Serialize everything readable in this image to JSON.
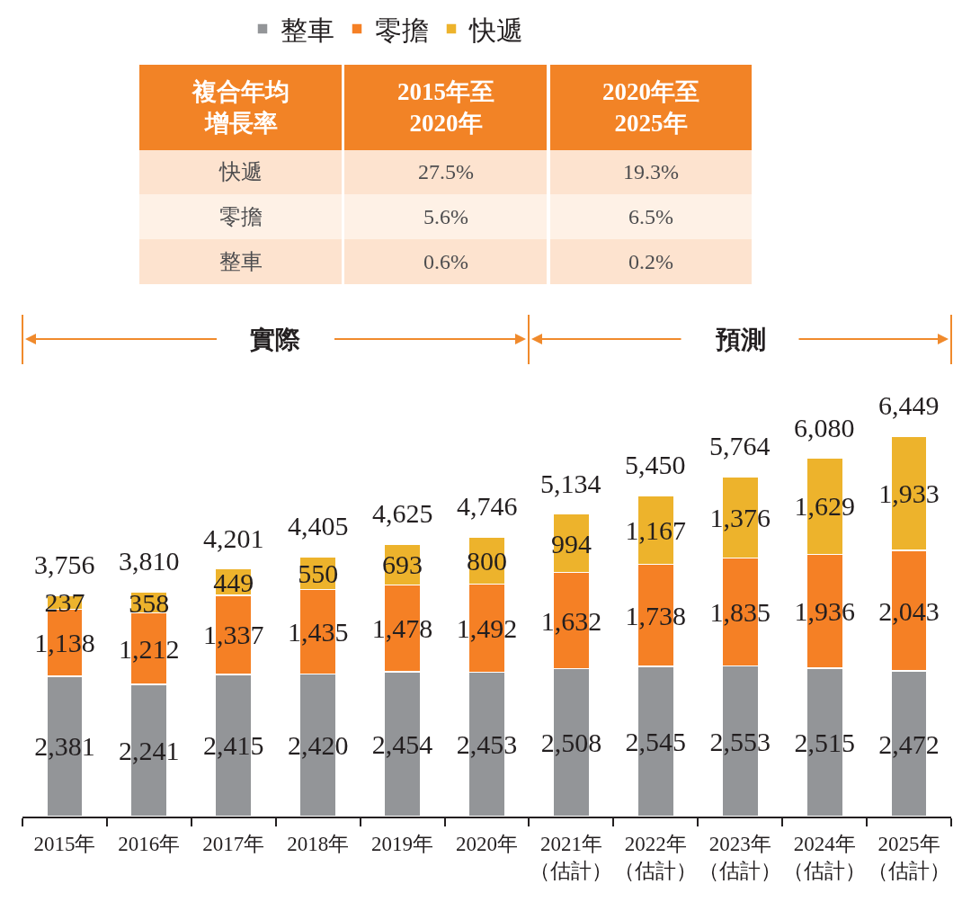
{
  "chart_data": {
    "type": "bar",
    "stacked": true,
    "legend": "top",
    "tick_labels": "x",
    "categories": [
      "2015年",
      "2016年",
      "2017年",
      "2018年",
      "2019年",
      "2020年",
      "2021年（估計）",
      "2022年（估計）",
      "2023年（估計）",
      "2024年（估計）",
      "2025年（估計）"
    ],
    "series": [
      {
        "name": "整車",
        "color": "#939598",
        "values": [
          2381,
          2241,
          2415,
          2420,
          2454,
          2453,
          2508,
          2545,
          2553,
          2515,
          2472
        ],
        "value_labels": [
          "2,381",
          "2,241",
          "2,415",
          "2,420",
          "2,454",
          "2,453",
          "2,508",
          "2,545",
          "2,553",
          "2,515",
          "2,472"
        ]
      },
      {
        "name": "零擔",
        "color": "#f58025",
        "values": [
          1138,
          1212,
          1337,
          1435,
          1478,
          1492,
          1632,
          1738,
          1835,
          1936,
          2043
        ],
        "value_labels": [
          "1,138",
          "1,212",
          "1,337",
          "1,435",
          "1,478",
          "1,492",
          "1,632",
          "1,738",
          "1,835",
          "1,936",
          "2,043"
        ]
      },
      {
        "name": "快遞",
        "color": "#edb32c",
        "values": [
          237,
          358,
          449,
          550,
          693,
          800,
          994,
          1167,
          1376,
          1629,
          1933
        ],
        "value_labels": [
          "237",
          "358",
          "449",
          "550",
          "693",
          "800",
          "994",
          "1,167",
          "1,376",
          "1,629",
          "1,933"
        ]
      }
    ],
    "totals": [
      "3,756",
      "3,810",
      "4,201",
      "4,405",
      "4,625",
      "4,746",
      "5,134",
      "5,450",
      "5,764",
      "6,080",
      "6,449"
    ],
    "annotations": [
      "複合年均增長率",
      "2015年至2020年",
      "2020年至2025年",
      "快遞",
      "27.5%",
      "19.3%",
      "零擔",
      "5.6%",
      "6.5%",
      "整車",
      "0.6%",
      "0.2%",
      "實際",
      "預測"
    ]
  }
}
